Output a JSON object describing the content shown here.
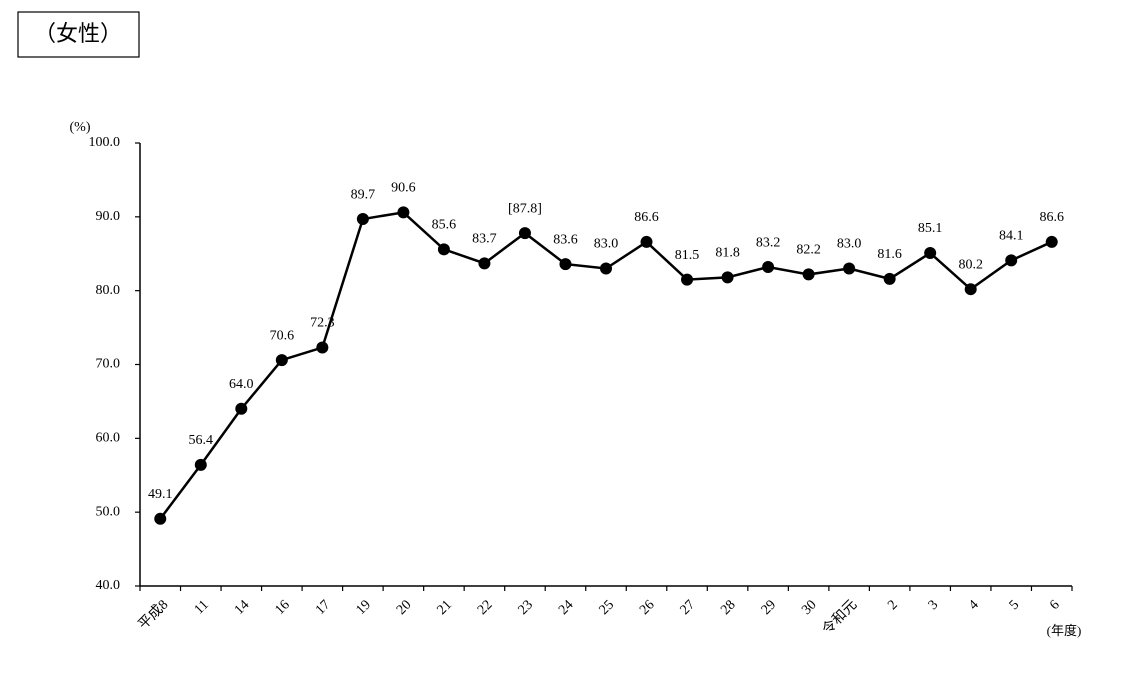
{
  "chart_data": {
    "type": "line",
    "title": "（女性）",
    "y_unit": "(%)",
    "x_unit": "(年度)",
    "categories": [
      "平成8",
      "11",
      "14",
      "16",
      "17",
      "19",
      "20",
      "21",
      "22",
      "23",
      "24",
      "25",
      "26",
      "27",
      "28",
      "29",
      "30",
      "令和元",
      "2",
      "3",
      "4",
      "5",
      "6"
    ],
    "series": [
      {
        "color": "#000000",
        "values": [
          49.1,
          56.4,
          64.0,
          70.6,
          72.3,
          89.7,
          90.6,
          85.6,
          83.7,
          87.8,
          83.6,
          83.0,
          86.6,
          81.5,
          81.8,
          83.2,
          82.2,
          83.0,
          81.6,
          85.1,
          80.2,
          84.1,
          86.6
        ],
        "value_labels": [
          "49.1",
          "56.4",
          "64.0",
          "70.6",
          "72.3",
          "89.7",
          "90.6",
          "85.6",
          "83.7",
          "[87.8]",
          "83.6",
          "83.0",
          "86.6",
          "81.5",
          "81.8",
          "83.2",
          "82.2",
          "83.0",
          "81.6",
          "85.1",
          "80.2",
          "84.1",
          "86.6"
        ]
      }
    ],
    "ylim": [
      40,
      100
    ],
    "yticks": [
      {
        "value": 40,
        "label": "40.0"
      },
      {
        "value": 50,
        "label": "50.0"
      },
      {
        "value": 60,
        "label": "60.0"
      },
      {
        "value": 70,
        "label": "70.0"
      },
      {
        "value": 80,
        "label": "80.0"
      },
      {
        "value": 90,
        "label": "90.0"
      },
      {
        "value": 100,
        "label": "100.0"
      }
    ],
    "grid": false
  }
}
